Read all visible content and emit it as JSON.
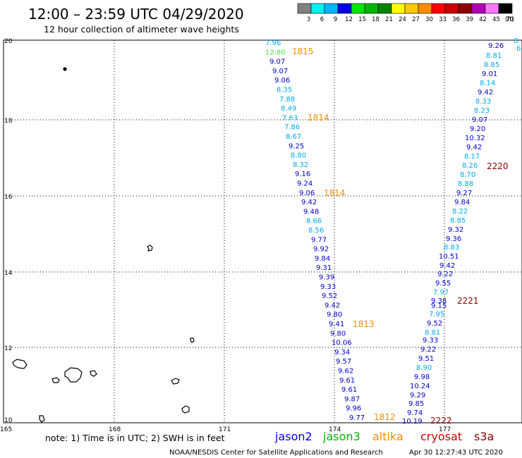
{
  "header": {
    "title": "12:00 – 23:59 UTC 04/29/2020",
    "subtitle": "12 hour collection of altimeter wave heights"
  },
  "legend": {
    "unit": "(ft)",
    "bins": [
      {
        "label": "3",
        "color": "#808080"
      },
      {
        "label": "6",
        "color": "#00f0f0"
      },
      {
        "label": "9",
        "color": "#00b4ff"
      },
      {
        "label": "12",
        "color": "#0000e6"
      },
      {
        "label": "15",
        "color": "#00e600"
      },
      {
        "label": "18",
        "color": "#00b400"
      },
      {
        "label": "21",
        "color": "#008200"
      },
      {
        "label": "24",
        "color": "#ffff00"
      },
      {
        "label": "27",
        "color": "#ffc800"
      },
      {
        "label": "30",
        "color": "#ff8c00"
      },
      {
        "label": "33",
        "color": "#ff0000"
      },
      {
        "label": "36",
        "color": "#c80000"
      },
      {
        "label": "39",
        "color": "#8c0000"
      },
      {
        "label": "42",
        "color": "#b400b4"
      },
      {
        "label": "45",
        "color": "#ff78ff"
      },
      {
        "label": "70",
        "color": "#000000"
      }
    ]
  },
  "axes": {
    "x_ticks": [
      "165",
      "168",
      "171",
      "174",
      "177"
    ],
    "y_ticks": [
      "20",
      "18",
      "16",
      "14",
      "12",
      "10"
    ]
  },
  "satellites": [
    {
      "name": "jason2",
      "color": "#0000e6"
    },
    {
      "name": "jason3",
      "color": "#00b400"
    },
    {
      "name": "altika",
      "color": "#ff8c00"
    },
    {
      "name": "cryosat",
      "color": "#c80000"
    },
    {
      "name": "s3a",
      "color": "#8c0000"
    }
  ],
  "note": "note:  1) Time is in UTC;  2) SWH is in feet",
  "footer": {
    "credit": "NOAA/NESDIS Center for Satellite Applications and Research",
    "generated": "Apr 30 12:27:43 UTC 2020"
  },
  "colors": {
    "jason2_blue": "#0000c8",
    "cyan": "#00aaee",
    "green": "#44dd44",
    "altika_orange": "#ff8c00",
    "s3a_darkred": "#8c0000",
    "grid": "#000000"
  },
  "tracks": [
    {
      "id": "altika-track-west",
      "time_labels": [
        {
          "text": "1815",
          "color": "#ff8c00"
        },
        {
          "text": "1814",
          "color": "#ff8c00"
        },
        {
          "text": "1814",
          "color": "#ff8c00"
        },
        {
          "text": "1813",
          "color": "#ff8c00"
        },
        {
          "text": "1812",
          "color": "#ff8c00"
        }
      ],
      "values": [
        {
          "v": "7.96",
          "c": "#00aaee"
        },
        {
          "v": "12.80",
          "c": "#44dd44"
        },
        {
          "v": "9.07",
          "c": "#0000c8"
        },
        {
          "v": "9.07",
          "c": "#0000c8"
        },
        {
          "v": "9.06",
          "c": "#0000c8"
        },
        {
          "v": "8.35",
          "c": "#00aaee"
        },
        {
          "v": "7.88",
          "c": "#00aaee"
        },
        {
          "v": "8.49",
          "c": "#00aaee"
        },
        {
          "v": "7.63",
          "c": "#00aaee"
        },
        {
          "v": "7.86",
          "c": "#00aaee"
        },
        {
          "v": "8.67",
          "c": "#00aaee"
        },
        {
          "v": "9.25",
          "c": "#0000c8"
        },
        {
          "v": "8.80",
          "c": "#00aaee"
        },
        {
          "v": "8.32",
          "c": "#00aaee"
        },
        {
          "v": "9.16",
          "c": "#0000c8"
        },
        {
          "v": "9.24",
          "c": "#0000c8"
        },
        {
          "v": "9.06",
          "c": "#0000c8"
        },
        {
          "v": "9.42",
          "c": "#0000c8"
        },
        {
          "v": "9.48",
          "c": "#0000c8"
        },
        {
          "v": "8.66",
          "c": "#00aaee"
        },
        {
          "v": "8.56",
          "c": "#00aaee"
        },
        {
          "v": "9.77",
          "c": "#0000c8"
        },
        {
          "v": "9.92",
          "c": "#0000c8"
        },
        {
          "v": "9.84",
          "c": "#0000c8"
        },
        {
          "v": "9.31",
          "c": "#0000c8"
        },
        {
          "v": "9.39",
          "c": "#0000c8"
        },
        {
          "v": "9.33",
          "c": "#0000c8"
        },
        {
          "v": "9.52",
          "c": "#0000c8"
        },
        {
          "v": "9.42",
          "c": "#0000c8"
        },
        {
          "v": "9.80",
          "c": "#0000c8"
        },
        {
          "v": "9.41",
          "c": "#0000c8"
        },
        {
          "v": "9.80",
          "c": "#0000c8"
        },
        {
          "v": "10.06",
          "c": "#0000c8"
        },
        {
          "v": "9.34",
          "c": "#0000c8"
        },
        {
          "v": "9.57",
          "c": "#0000c8"
        },
        {
          "v": "9.62",
          "c": "#0000c8"
        },
        {
          "v": "9.61",
          "c": "#0000c8"
        },
        {
          "v": "9.61",
          "c": "#0000c8"
        },
        {
          "v": "9.87",
          "c": "#0000c8"
        },
        {
          "v": "9.96",
          "c": "#0000c8"
        },
        {
          "v": "9.77",
          "c": "#0000c8"
        }
      ]
    },
    {
      "id": "s3a-track-east",
      "time_labels": [
        {
          "text": "2220",
          "color": "#8c0000"
        },
        {
          "text": "2221",
          "color": "#8c0000"
        },
        {
          "text": "2222",
          "color": "#8c0000"
        }
      ],
      "values": [
        {
          "v": "8.",
          "c": "#00aaee"
        },
        {
          "v": "6",
          "c": "#00aaee"
        },
        {
          "v": "9.26",
          "c": "#0000c8"
        },
        {
          "v": "8.81",
          "c": "#00aaee"
        },
        {
          "v": "8.85",
          "c": "#00aaee"
        },
        {
          "v": "9.01",
          "c": "#0000c8"
        },
        {
          "v": "8.14",
          "c": "#00aaee"
        },
        {
          "v": "9.42",
          "c": "#0000c8"
        },
        {
          "v": "8.33",
          "c": "#00aaee"
        },
        {
          "v": "8.23",
          "c": "#00aaee"
        },
        {
          "v": "9.07",
          "c": "#0000c8"
        },
        {
          "v": "9.20",
          "c": "#0000c8"
        },
        {
          "v": "10.32",
          "c": "#0000c8"
        },
        {
          "v": "9.42",
          "c": "#0000c8"
        },
        {
          "v": "8.17",
          "c": "#00aaee"
        },
        {
          "v": "8.26",
          "c": "#00aaee"
        },
        {
          "v": "8.70",
          "c": "#00aaee"
        },
        {
          "v": "8.88",
          "c": "#00aaee"
        },
        {
          "v": "9.27",
          "c": "#0000c8"
        },
        {
          "v": "9.84",
          "c": "#0000c8"
        },
        {
          "v": "8.22",
          "c": "#00aaee"
        },
        {
          "v": "8.85",
          "c": "#00aaee"
        },
        {
          "v": "9.32",
          "c": "#0000c8"
        },
        {
          "v": "9.36",
          "c": "#0000c8"
        },
        {
          "v": "8.83",
          "c": "#00aaee"
        },
        {
          "v": "10.51",
          "c": "#0000c8"
        },
        {
          "v": "9.42",
          "c": "#0000c8"
        },
        {
          "v": "9.22",
          "c": "#0000c8"
        },
        {
          "v": "9.55",
          "c": "#0000c8"
        },
        {
          "v": "7.97",
          "c": "#00aaee"
        },
        {
          "v": "9.38",
          "c": "#0000c8"
        },
        {
          "v": "9.15",
          "c": "#0000c8"
        },
        {
          "v": "7.95",
          "c": "#00aaee"
        },
        {
          "v": "9.52",
          "c": "#0000c8"
        },
        {
          "v": "8.81",
          "c": "#00aaee"
        },
        {
          "v": "9.33",
          "c": "#0000c8"
        },
        {
          "v": "9.22",
          "c": "#0000c8"
        },
        {
          "v": "9.51",
          "c": "#0000c8"
        },
        {
          "v": "8.90",
          "c": "#00aaee"
        },
        {
          "v": "9.98",
          "c": "#0000c8"
        },
        {
          "v": "10.24",
          "c": "#0000c8"
        },
        {
          "v": "9.29",
          "c": "#0000c8"
        },
        {
          "v": "9.85",
          "c": "#0000c8"
        },
        {
          "v": "9.74",
          "c": "#0000c8"
        },
        {
          "v": "10.19",
          "c": "#0000c8"
        }
      ]
    }
  ]
}
